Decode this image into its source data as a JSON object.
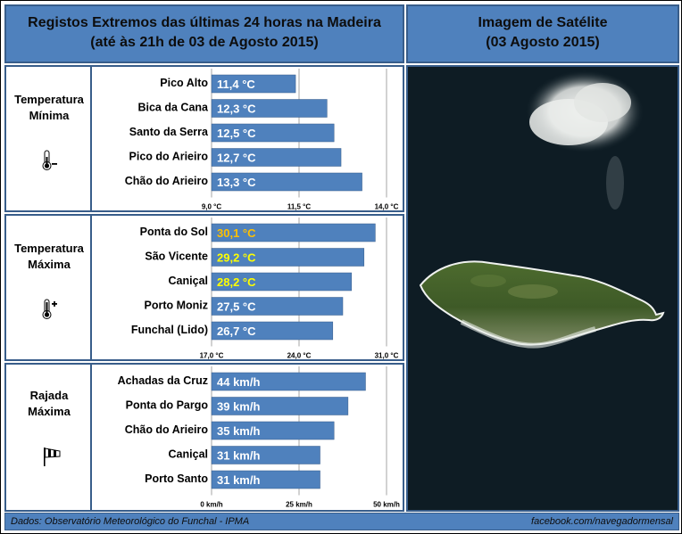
{
  "header_left": {
    "line1": "Registos Extremos das últimas 24 horas na Madeira",
    "line2": "(até às 21h de 03 de Agosto 2015)"
  },
  "header_right": {
    "line1": "Imagem de Satélite",
    "line2": "(03 Agosto 2015)"
  },
  "footer": {
    "source": "Dados:  Observatório Meteorológico do Funchal - IPMA",
    "credit": "facebook.com/navegadormensal"
  },
  "colors": {
    "bar": "#4f81bd",
    "header": "#4f81bd",
    "border": "#385d8a",
    "highlight_orange": "#ffc000",
    "highlight_yellow": "#ffff00"
  },
  "chart_data": [
    {
      "type": "bar",
      "orientation": "horizontal",
      "panel_label": [
        "Temperatura",
        "Mínima"
      ],
      "icon": "thermometer-minus-icon",
      "categories": [
        "Pico Alto",
        "Bica da Cana",
        "Santo da Serra",
        "Pico do Arieiro",
        "Chão do Arieiro"
      ],
      "values": [
        11.4,
        12.3,
        12.5,
        12.7,
        13.3
      ],
      "data_labels": [
        "11,4 °C",
        "12,3 °C",
        "12,5 °C",
        "12,7 °C",
        "13,3 °C"
      ],
      "label_colors": [
        "#ffffff",
        "#ffffff",
        "#ffffff",
        "#ffffff",
        "#ffffff"
      ],
      "xlim": [
        9.0,
        14.0
      ],
      "ticks": [
        9.0,
        11.5,
        14.0
      ],
      "tick_labels": [
        "9,0 °C",
        "11,5 °C",
        "14,0 °C"
      ]
    },
    {
      "type": "bar",
      "orientation": "horizontal",
      "panel_label": [
        "Temperatura",
        "Máxima"
      ],
      "icon": "thermometer-plus-icon",
      "categories": [
        "Ponta do Sol",
        "São Vicente",
        "Caniçal",
        "Porto Moniz",
        "Funchal (Lido)"
      ],
      "values": [
        30.1,
        29.2,
        28.2,
        27.5,
        26.7
      ],
      "data_labels": [
        "30,1 °C",
        "29,2 °C",
        "28,2 °C",
        "27,5 °C",
        "26,7 °C"
      ],
      "label_colors": [
        "#ffc000",
        "#ffff00",
        "#ffff00",
        "#ffffff",
        "#ffffff"
      ],
      "xlim": [
        17.0,
        31.0
      ],
      "ticks": [
        17.0,
        24.0,
        31.0
      ],
      "tick_labels": [
        "17,0 °C",
        "24,0 °C",
        "31,0 °C"
      ]
    },
    {
      "type": "bar",
      "orientation": "horizontal",
      "panel_label": [
        "Rajada",
        "Máxima"
      ],
      "icon": "windsock-icon",
      "categories": [
        "Achadas da Cruz",
        "Ponta do Pargo",
        "Chão do Arieiro",
        "Caniçal",
        "Porto Santo"
      ],
      "values": [
        44,
        39,
        35,
        31,
        31
      ],
      "data_labels": [
        "44 km/h",
        "39 km/h",
        "35 km/h",
        "31 km/h",
        "31 km/h"
      ],
      "label_colors": [
        "#ffffff",
        "#ffffff",
        "#ffffff",
        "#ffffff",
        "#ffffff"
      ],
      "xlim": [
        0,
        50
      ],
      "ticks": [
        0,
        25,
        50
      ],
      "tick_labels": [
        "0 km/h",
        "25 km/h",
        "50 km/h"
      ]
    }
  ]
}
